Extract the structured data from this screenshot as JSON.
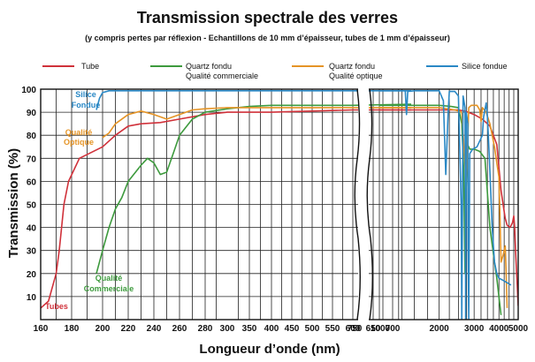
{
  "chart_data": {
    "type": "line",
    "title": "Transmission spectrale des verres",
    "subtitle": "(y compris pertes par réflexion - Echantillons de 10 mm d’épaisseur, tubes de 1 mm d’épaisseur)",
    "xlabel": "Longueur d’onde (nm)",
    "ylabel": "Transmission (%)",
    "ylim": [
      0,
      100
    ],
    "grid": true,
    "x_segments": [
      {
        "name": "uv-visible",
        "scale": "linear",
        "range": [
          160,
          750
        ]
      },
      {
        "name": "infrared",
        "scale": "log",
        "range": [
          1000,
          5000
        ]
      }
    ],
    "x_ticks": [
      "160",
      "180",
      "200",
      "220",
      "240",
      "260",
      "280",
      "300",
      "350",
      "400",
      "450",
      "500",
      "550",
      "600",
      "650",
      "700",
      "750",
      "1000",
      "2000",
      "3000",
      "4000",
      "5000"
    ],
    "y_ticks": [
      "10",
      "20",
      "30",
      "40",
      "50",
      "60",
      "70",
      "80",
      "90",
      "100"
    ],
    "legend": [
      {
        "key": "tube",
        "label": "Tube",
        "label2": "",
        "color": "#d0313a"
      },
      {
        "key": "qfc",
        "label": "Quartz fondu",
        "label2": "Qualité commerciale",
        "color": "#3d9a3d"
      },
      {
        "key": "qfo",
        "label": "Quartz fondu",
        "label2": "Qualité optique",
        "color": "#e59426"
      },
      {
        "key": "sf",
        "label": "Silice fondue",
        "label2": "",
        "color": "#2a88c5"
      }
    ],
    "annotations": [
      {
        "key": "sf",
        "line1": "Silice",
        "line2": "Fondue"
      },
      {
        "key": "qfo",
        "line1": "Qualité",
        "line2": "Optique"
      },
      {
        "key": "qfc",
        "line1": "Qualité",
        "line2": "Commerciale"
      },
      {
        "key": "tube",
        "line1": "Tubes",
        "line2": ""
      }
    ],
    "series": [
      {
        "name": "Tube",
        "key": "tube",
        "color": "#d0313a",
        "points": [
          [
            160,
            5
          ],
          [
            165,
            8
          ],
          [
            170,
            20
          ],
          [
            172,
            30
          ],
          [
            175,
            50
          ],
          [
            178,
            60
          ],
          [
            185,
            70
          ],
          [
            200,
            75
          ],
          [
            210,
            80
          ],
          [
            220,
            84
          ],
          [
            230,
            85
          ],
          [
            245,
            85.5
          ],
          [
            260,
            87
          ],
          [
            280,
            89
          ],
          [
            300,
            90
          ],
          [
            350,
            90
          ],
          [
            400,
            90
          ],
          [
            500,
            90.5
          ],
          [
            600,
            91
          ],
          [
            750,
            91
          ],
          [
            1000,
            91
          ],
          [
            1500,
            91
          ],
          [
            2000,
            91
          ],
          [
            2500,
            91
          ],
          [
            2700,
            90.5
          ],
          [
            3000,
            89
          ],
          [
            3300,
            87
          ],
          [
            3600,
            84
          ],
          [
            3900,
            76
          ],
          [
            4100,
            56
          ],
          [
            4300,
            44
          ],
          [
            4400,
            41
          ],
          [
            4550,
            40
          ],
          [
            4680,
            42
          ],
          [
            4750,
            45
          ],
          [
            4800,
            40
          ],
          [
            4850,
            30
          ],
          [
            4900,
            22
          ],
          [
            5000,
            6
          ]
        ]
      },
      {
        "name": "Quartz fondu - Qualité commerciale",
        "key": "qfc",
        "color": "#3d9a3d",
        "points": [
          [
            196,
            20
          ],
          [
            200,
            30
          ],
          [
            205,
            40
          ],
          [
            210,
            48
          ],
          [
            215,
            53
          ],
          [
            220,
            60
          ],
          [
            230,
            67
          ],
          [
            235,
            70
          ],
          [
            240,
            68
          ],
          [
            245,
            63
          ],
          [
            250,
            64
          ],
          [
            255,
            72
          ],
          [
            260,
            80
          ],
          [
            270,
            87
          ],
          [
            280,
            90
          ],
          [
            300,
            91.5
          ],
          [
            350,
            92.5
          ],
          [
            400,
            93
          ],
          [
            500,
            93
          ],
          [
            600,
            93
          ],
          [
            750,
            93.5
          ],
          [
            1000,
            93
          ],
          [
            1500,
            93
          ],
          [
            2000,
            93
          ],
          [
            2300,
            92.5
          ],
          [
            2500,
            92
          ],
          [
            2600,
            85
          ],
          [
            2660,
            65
          ],
          [
            2700,
            20
          ],
          [
            2730,
            55
          ],
          [
            2780,
            76
          ],
          [
            2850,
            74
          ],
          [
            3000,
            74
          ],
          [
            3200,
            73
          ],
          [
            3400,
            70
          ],
          [
            3500,
            55
          ],
          [
            3600,
            40
          ],
          [
            3800,
            25
          ],
          [
            3900,
            18
          ],
          [
            4000,
            10
          ],
          [
            4100,
            2
          ]
        ]
      },
      {
        "name": "Quartz fondu - Qualité optique",
        "key": "qfo",
        "color": "#e59426",
        "points": [
          [
            200,
            79
          ],
          [
            205,
            81
          ],
          [
            210,
            85
          ],
          [
            220,
            89
          ],
          [
            230,
            90.5
          ],
          [
            240,
            89
          ],
          [
            250,
            87
          ],
          [
            260,
            89
          ],
          [
            270,
            91
          ],
          [
            280,
            91.5
          ],
          [
            300,
            92
          ],
          [
            350,
            92
          ],
          [
            400,
            92
          ],
          [
            500,
            92
          ],
          [
            600,
            92
          ],
          [
            750,
            92
          ],
          [
            1000,
            92
          ],
          [
            1500,
            92
          ],
          [
            2000,
            92
          ],
          [
            2400,
            91
          ],
          [
            2600,
            90
          ],
          [
            2680,
            72
          ],
          [
            2730,
            60
          ],
          [
            2780,
            75
          ],
          [
            2820,
            92
          ],
          [
            2900,
            93
          ],
          [
            3000,
            93
          ],
          [
            3100,
            93
          ],
          [
            3200,
            91
          ],
          [
            3250,
            86
          ],
          [
            3300,
            92
          ],
          [
            3450,
            90
          ],
          [
            3600,
            85
          ],
          [
            3800,
            75
          ],
          [
            3900,
            68
          ],
          [
            4000,
            62
          ],
          [
            4050,
            45
          ],
          [
            4100,
            25
          ],
          [
            4200,
            28
          ],
          [
            4300,
            32
          ],
          [
            4350,
            20
          ],
          [
            4400,
            5
          ]
        ]
      },
      {
        "name": "Silice fondue",
        "key": "sf",
        "color": "#2a88c5",
        "points": [
          [
            196,
            91
          ],
          [
            198,
            96
          ],
          [
            200,
            98.5
          ],
          [
            205,
            99.3
          ],
          [
            220,
            99.3
          ],
          [
            260,
            99.3
          ],
          [
            300,
            99.3
          ],
          [
            400,
            99.3
          ],
          [
            500,
            99.3
          ],
          [
            600,
            99.3
          ],
          [
            750,
            99.3
          ],
          [
            1000,
            99.3
          ],
          [
            1350,
            99.3
          ],
          [
            1370,
            89
          ],
          [
            1390,
            99
          ],
          [
            1500,
            99.3
          ],
          [
            2000,
            99.3
          ],
          [
            2100,
            95
          ],
          [
            2160,
            63
          ],
          [
            2220,
            90
          ],
          [
            2250,
            99
          ],
          [
            2400,
            99
          ],
          [
            2500,
            97
          ],
          [
            2580,
            50
          ],
          [
            2600,
            0
          ],
          [
            2640,
            97
          ],
          [
            2700,
            92
          ],
          [
            2710,
            50
          ],
          [
            2720,
            0
          ],
          [
            2740,
            90
          ],
          [
            2790,
            85
          ],
          [
            2800,
            30
          ],
          [
            2820,
            0
          ],
          [
            2850,
            72
          ],
          [
            2950,
            74
          ],
          [
            3100,
            75
          ],
          [
            3300,
            80
          ],
          [
            3350,
            88
          ],
          [
            3450,
            94
          ],
          [
            3500,
            88
          ],
          [
            3580,
            70
          ],
          [
            3700,
            40
          ],
          [
            3800,
            25
          ],
          [
            3900,
            20
          ],
          [
            4000,
            18
          ],
          [
            4200,
            17
          ],
          [
            4400,
            16
          ],
          [
            4600,
            15
          ]
        ]
      }
    ]
  }
}
